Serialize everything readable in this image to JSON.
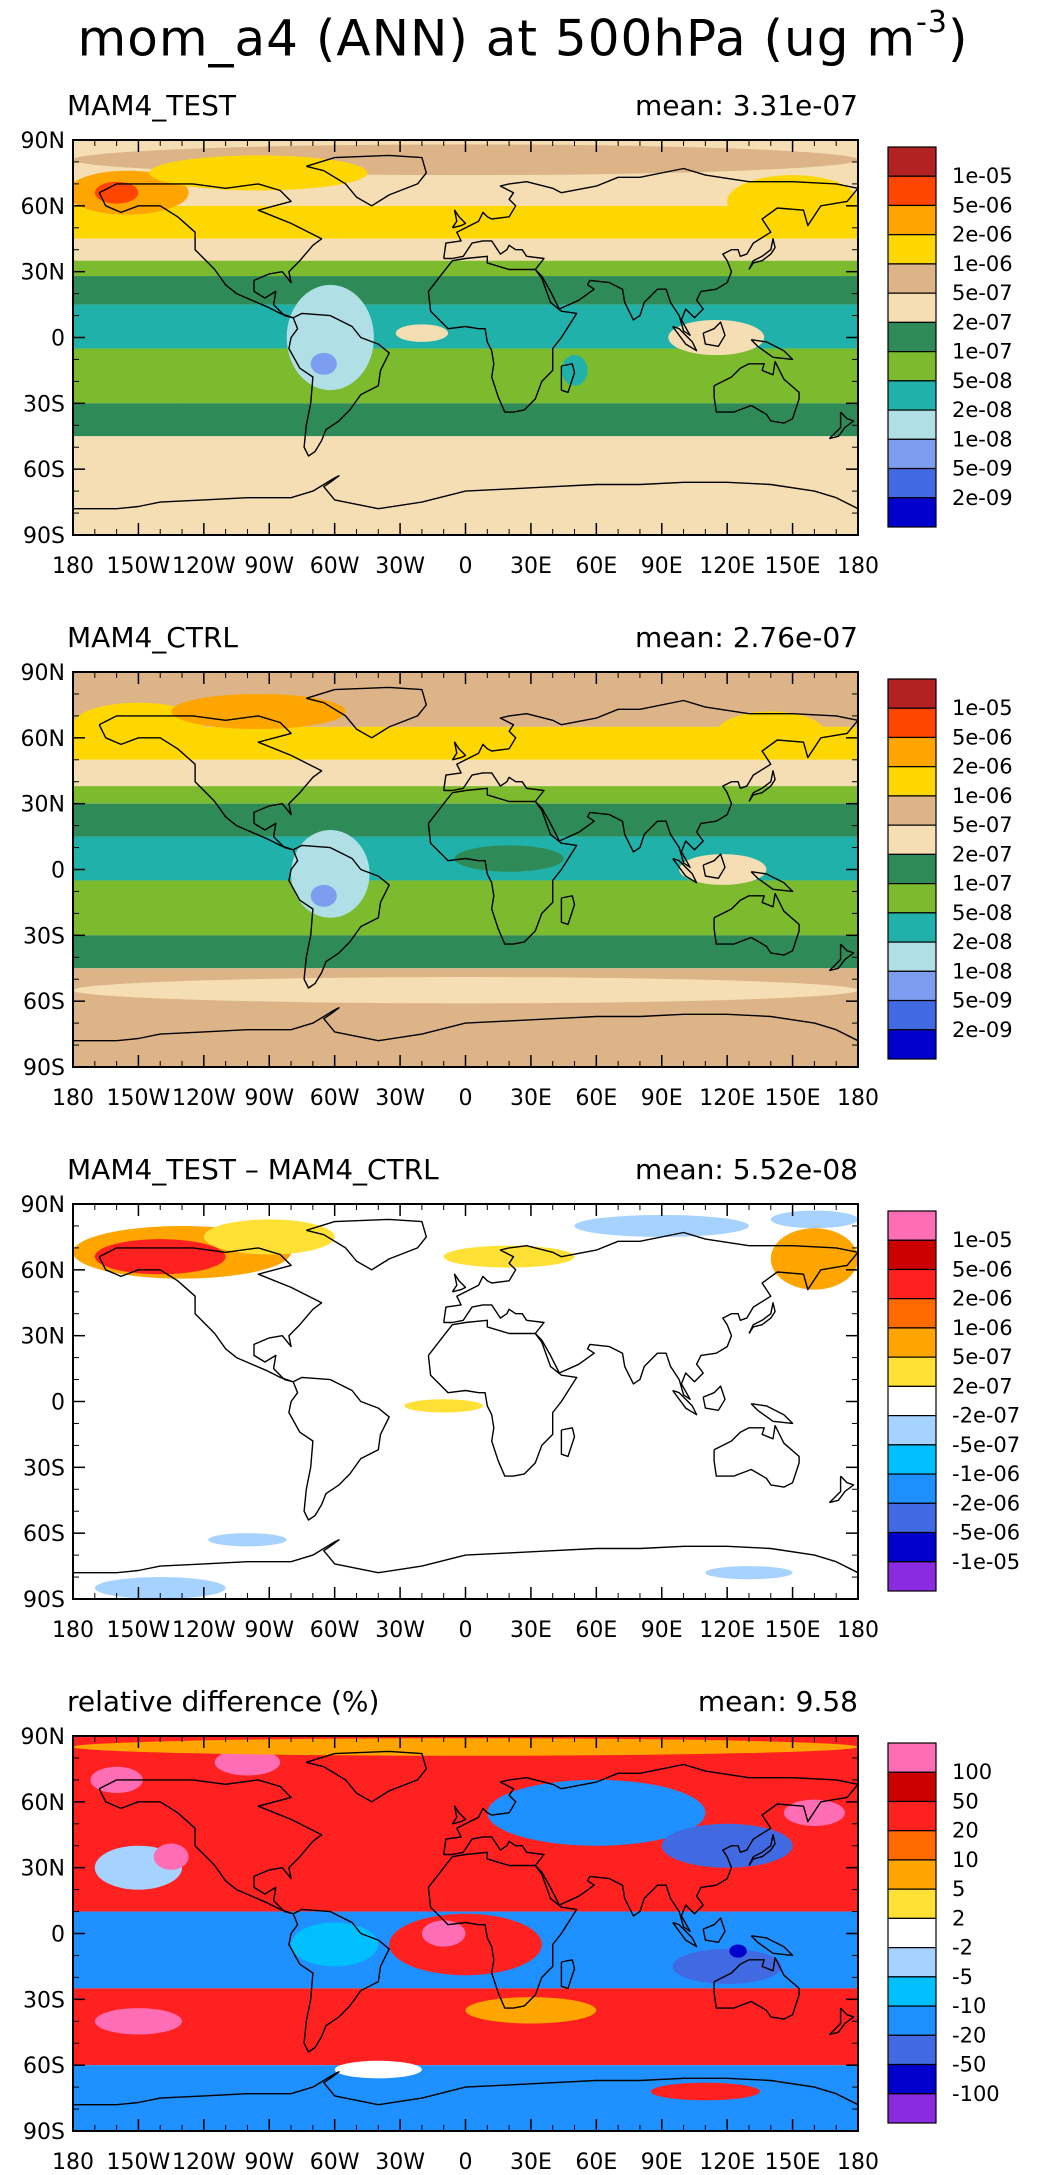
{
  "figure": {
    "title_main": "mom_a4 (ANN) at 500hPa (ug m",
    "title_exp": "-3",
    "title_close": ")"
  },
  "chart_data": [
    {
      "type": "heatmap",
      "map": "global filled-contour map, Cylindrical Equidistant projection",
      "title": "MAM4_TEST",
      "stat_label": "mean:",
      "stat_value": "3.31e-07",
      "x_ticks": [
        "180",
        "150W",
        "120W",
        "90W",
        "60W",
        "30W",
        "0",
        "30E",
        "60E",
        "90E",
        "120E",
        "150E",
        "180"
      ],
      "y_ticks": [
        "90N",
        "60N",
        "30N",
        "0",
        "30S",
        "60S",
        "90S"
      ],
      "xlim": [
        -180,
        180
      ],
      "ylim": [
        -90,
        90
      ],
      "colorbar": {
        "labels": [
          "1e-05",
          "5e-06",
          "2e-06",
          "1e-06",
          "5e-07",
          "2e-07",
          "1e-07",
          "5e-08",
          "2e-08",
          "1e-08",
          "5e-09",
          "2e-09"
        ],
        "colors": [
          "#b22222",
          "#ff4500",
          "#ffa500",
          "#ffd700",
          "#dcb487",
          "#f5deb3",
          "#2e8b57",
          "#7cbb2e",
          "#20b2aa",
          "#b0e0e6",
          "#7d9ef0",
          "#4169e1",
          "#0000cd"
        ]
      },
      "zonal_bands": [
        {
          "lat": [
            60,
            90
          ],
          "color": "#f5deb3"
        },
        {
          "lat": [
            45,
            60
          ],
          "color": "#ffd700"
        },
        {
          "lat": [
            35,
            45
          ],
          "color": "#f5deb3"
        },
        {
          "lat": [
            28,
            35
          ],
          "color": "#7cbb2e"
        },
        {
          "lat": [
            15,
            28
          ],
          "color": "#2e8b57"
        },
        {
          "lat": [
            -5,
            15
          ],
          "color": "#20b2aa"
        },
        {
          "lat": [
            -30,
            -5
          ],
          "color": "#7cbb2e"
        },
        {
          "lat": [
            -45,
            -30
          ],
          "color": "#2e8b57"
        },
        {
          "lat": [
            -90,
            -45
          ],
          "color": "#f5deb3"
        }
      ],
      "features": [
        {
          "lon": 0,
          "lat": 81,
          "rx": 180,
          "ry": 7,
          "color": "#dcb487"
        },
        {
          "lon": -155,
          "lat": 66,
          "rx": 28,
          "ry": 10,
          "color": "#ffa500"
        },
        {
          "lon": -160,
          "lat": 66,
          "rx": 10,
          "ry": 5,
          "color": "#ff4500"
        },
        {
          "lon": 150,
          "lat": 62,
          "rx": 30,
          "ry": 12,
          "color": "#ffd700"
        },
        {
          "lon": -95,
          "lat": 75,
          "rx": 50,
          "ry": 8,
          "color": "#ffd700"
        },
        {
          "lon": -62,
          "lat": 0,
          "rx": 20,
          "ry": 24,
          "color": "#b0e0e6"
        },
        {
          "lon": -65,
          "lat": -12,
          "rx": 6,
          "ry": 5,
          "color": "#7d9ef0"
        },
        {
          "lon": -20,
          "lat": 2,
          "rx": 12,
          "ry": 4,
          "color": "#f5deb3"
        },
        {
          "lon": 115,
          "lat": 0,
          "rx": 22,
          "ry": 8,
          "color": "#f5deb3"
        },
        {
          "lon": 50,
          "lat": -15,
          "rx": 6,
          "ry": 7,
          "color": "#20b2aa"
        },
        {
          "lon": -130,
          "lat": -33,
          "rx": 15,
          "ry": 3,
          "color": "#2e8b57"
        },
        {
          "lon": 0,
          "lat": -72,
          "rx": 180,
          "ry": 18,
          "color": "#f5deb3"
        }
      ]
    },
    {
      "type": "heatmap",
      "map": "global filled-contour map, Cylindrical Equidistant projection",
      "title": "MAM4_CTRL",
      "stat_label": "mean:",
      "stat_value": "2.76e-07",
      "x_ticks": [
        "180",
        "150W",
        "120W",
        "90W",
        "60W",
        "30W",
        "0",
        "30E",
        "60E",
        "90E",
        "120E",
        "150E",
        "180"
      ],
      "y_ticks": [
        "90N",
        "60N",
        "30N",
        "0",
        "30S",
        "60S",
        "90S"
      ],
      "xlim": [
        -180,
        180
      ],
      "ylim": [
        -90,
        90
      ],
      "colorbar": {
        "labels": [
          "1e-05",
          "5e-06",
          "2e-06",
          "1e-06",
          "5e-07",
          "2e-07",
          "1e-07",
          "5e-08",
          "2e-08",
          "1e-08",
          "5e-09",
          "2e-09"
        ],
        "colors": [
          "#b22222",
          "#ff4500",
          "#ffa500",
          "#ffd700",
          "#dcb487",
          "#f5deb3",
          "#2e8b57",
          "#7cbb2e",
          "#20b2aa",
          "#b0e0e6",
          "#7d9ef0",
          "#4169e1",
          "#0000cd"
        ]
      },
      "zonal_bands": [
        {
          "lat": [
            65,
            90
          ],
          "color": "#dcb487"
        },
        {
          "lat": [
            50,
            65
          ],
          "color": "#ffd700"
        },
        {
          "lat": [
            38,
            50
          ],
          "color": "#f5deb3"
        },
        {
          "lat": [
            30,
            38
          ],
          "color": "#7cbb2e"
        },
        {
          "lat": [
            15,
            30
          ],
          "color": "#2e8b57"
        },
        {
          "lat": [
            -5,
            15
          ],
          "color": "#20b2aa"
        },
        {
          "lat": [
            -30,
            -5
          ],
          "color": "#7cbb2e"
        },
        {
          "lat": [
            -45,
            -30
          ],
          "color": "#2e8b57"
        },
        {
          "lat": [
            -90,
            -45
          ],
          "color": "#dcb487"
        }
      ],
      "features": [
        {
          "lon": -150,
          "lat": 66,
          "rx": 30,
          "ry": 10,
          "color": "#ffd700"
        },
        {
          "lon": -95,
          "lat": 72,
          "rx": 40,
          "ry": 8,
          "color": "#ffa500"
        },
        {
          "lon": 140,
          "lat": 62,
          "rx": 25,
          "ry": 10,
          "color": "#ffd700"
        },
        {
          "lon": -62,
          "lat": -2,
          "rx": 18,
          "ry": 20,
          "color": "#b0e0e6"
        },
        {
          "lon": -65,
          "lat": -12,
          "rx": 6,
          "ry": 5,
          "color": "#7d9ef0"
        },
        {
          "lon": 118,
          "lat": 0,
          "rx": 20,
          "ry": 7,
          "color": "#f5deb3"
        },
        {
          "lon": 20,
          "lat": 5,
          "rx": 25,
          "ry": 6,
          "color": "#2e8b57"
        },
        {
          "lon": 0,
          "lat": -55,
          "rx": 180,
          "ry": 6,
          "color": "#f5deb3"
        }
      ]
    },
    {
      "type": "heatmap",
      "map": "global filled-contour map, Cylindrical Equidistant projection",
      "title": "MAM4_TEST – MAM4_CTRL",
      "stat_label": "mean:",
      "stat_value": "5.52e-08",
      "x_ticks": [
        "180",
        "150W",
        "120W",
        "90W",
        "60W",
        "30W",
        "0",
        "30E",
        "60E",
        "90E",
        "120E",
        "150E",
        "180"
      ],
      "y_ticks": [
        "90N",
        "60N",
        "30N",
        "0",
        "30S",
        "60S",
        "90S"
      ],
      "xlim": [
        -180,
        180
      ],
      "ylim": [
        -90,
        90
      ],
      "colorbar": {
        "labels": [
          "1e-05",
          "5e-06",
          "2e-06",
          "1e-06",
          "5e-07",
          "2e-07",
          "-2e-07",
          "-5e-07",
          "-1e-06",
          "-2e-06",
          "-5e-06",
          "-1e-05"
        ],
        "colors": [
          "#ff6eb4",
          "#cd0000",
          "#ff2020",
          "#ff6a00",
          "#ffa500",
          "#ffe135",
          "#ffffff",
          "#a6d2ff",
          "#00bfff",
          "#1e90ff",
          "#4169e1",
          "#0000cd",
          "#8a2be2"
        ]
      },
      "zonal_bands": [
        {
          "lat": [
            -90,
            90
          ],
          "color": "#ffffff"
        }
      ],
      "features": [
        {
          "lon": -130,
          "lat": 68,
          "rx": 50,
          "ry": 12,
          "color": "#ffa500"
        },
        {
          "lon": -140,
          "lat": 66,
          "rx": 30,
          "ry": 8,
          "color": "#ff2020"
        },
        {
          "lon": -90,
          "lat": 75,
          "rx": 30,
          "ry": 8,
          "color": "#ffe135"
        },
        {
          "lon": 20,
          "lat": 66,
          "rx": 30,
          "ry": 5,
          "color": "#ffe135"
        },
        {
          "lon": 90,
          "lat": 80,
          "rx": 40,
          "ry": 5,
          "color": "#a6d2ff"
        },
        {
          "lon": 160,
          "lat": 65,
          "rx": 20,
          "ry": 14,
          "color": "#ffa500"
        },
        {
          "lon": 160,
          "lat": 83,
          "rx": 20,
          "ry": 4,
          "color": "#a6d2ff"
        },
        {
          "lon": -10,
          "lat": -2,
          "rx": 18,
          "ry": 3,
          "color": "#ffe135"
        },
        {
          "lon": -100,
          "lat": -63,
          "rx": 18,
          "ry": 3,
          "color": "#a6d2ff"
        },
        {
          "lon": -140,
          "lat": -85,
          "rx": 30,
          "ry": 5,
          "color": "#a6d2ff"
        },
        {
          "lon": 130,
          "lat": -78,
          "rx": 20,
          "ry": 3,
          "color": "#a6d2ff"
        }
      ]
    },
    {
      "type": "heatmap",
      "map": "global filled-contour map, Cylindrical Equidistant projection",
      "title": "relative difference (%)",
      "stat_label": "mean:",
      "stat_value": "9.58",
      "x_ticks": [
        "180",
        "150W",
        "120W",
        "90W",
        "60W",
        "30W",
        "0",
        "30E",
        "60E",
        "90E",
        "120E",
        "150E",
        "180"
      ],
      "y_ticks": [
        "90N",
        "60N",
        "30N",
        "0",
        "30S",
        "60S",
        "90S"
      ],
      "xlim": [
        -180,
        180
      ],
      "ylim": [
        -90,
        90
      ],
      "colorbar": {
        "labels": [
          "100",
          "50",
          "20",
          "10",
          "5",
          "2",
          "-2",
          "-5",
          "-10",
          "-20",
          "-50",
          "-100"
        ],
        "colors": [
          "#ff6eb4",
          "#cd0000",
          "#ff2020",
          "#ff6a00",
          "#ffa500",
          "#ffe135",
          "#ffffff",
          "#a6d2ff",
          "#00bfff",
          "#1e90ff",
          "#4169e1",
          "#0000cd",
          "#8a2be2"
        ]
      },
      "zonal_bands": [
        {
          "lat": [
            10,
            90
          ],
          "color": "#ff2020"
        },
        {
          "lat": [
            -25,
            10
          ],
          "color": "#1e90ff"
        },
        {
          "lat": [
            -60,
            -25
          ],
          "color": "#ff2020"
        },
        {
          "lat": [
            -90,
            -60
          ],
          "color": "#1e90ff"
        }
      ],
      "features": [
        {
          "lon": 60,
          "lat": 55,
          "rx": 50,
          "ry": 15,
          "color": "#1e90ff"
        },
        {
          "lon": 120,
          "lat": 40,
          "rx": 30,
          "ry": 10,
          "color": "#4169e1"
        },
        {
          "lon": -150,
          "lat": 30,
          "rx": 20,
          "ry": 10,
          "color": "#a6d2ff"
        },
        {
          "lon": -135,
          "lat": 35,
          "rx": 8,
          "ry": 6,
          "color": "#ff6eb4"
        },
        {
          "lon": -160,
          "lat": 70,
          "rx": 12,
          "ry": 6,
          "color": "#ff6eb4"
        },
        {
          "lon": -100,
          "lat": 78,
          "rx": 15,
          "ry": 6,
          "color": "#ff6eb4"
        },
        {
          "lon": 160,
          "lat": 55,
          "rx": 14,
          "ry": 6,
          "color": "#ff6eb4"
        },
        {
          "lon": 0,
          "lat": -5,
          "rx": 35,
          "ry": 14,
          "color": "#ff2020"
        },
        {
          "lon": -10,
          "lat": 0,
          "rx": 10,
          "ry": 6,
          "color": "#ff6eb4"
        },
        {
          "lon": -60,
          "lat": -5,
          "rx": 20,
          "ry": 10,
          "color": "#00bfff"
        },
        {
          "lon": 120,
          "lat": -15,
          "rx": 25,
          "ry": 8,
          "color": "#4169e1"
        },
        {
          "lon": 125,
          "lat": -8,
          "rx": 4,
          "ry": 3,
          "color": "#0000cd"
        },
        {
          "lon": -150,
          "lat": -40,
          "rx": 20,
          "ry": 6,
          "color": "#ff6eb4"
        },
        {
          "lon": 30,
          "lat": -35,
          "rx": 30,
          "ry": 6,
          "color": "#ffa500"
        },
        {
          "lon": -40,
          "lat": -62,
          "rx": 20,
          "ry": 4,
          "color": "#ffffff"
        },
        {
          "lon": 110,
          "lat": -72,
          "rx": 25,
          "ry": 4,
          "color": "#ff2020"
        },
        {
          "lon": 0,
          "lat": 85,
          "rx": 180,
          "ry": 4,
          "color": "#ffa500"
        }
      ]
    }
  ]
}
